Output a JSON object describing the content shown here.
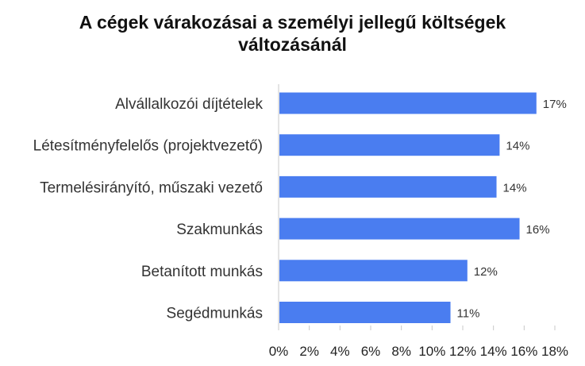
{
  "chart_data": {
    "type": "bar",
    "orientation": "horizontal",
    "title_lines": [
      "A cégek várakozásai a személyi jellegű költségek",
      "változásánál"
    ],
    "categories": [
      "Alvállalkozói díjtételek",
      "Létesítményfelelős (projektvezető)",
      "Termelésirányító, műszaki vezető",
      "Szakmunkás",
      "Betanított munkás",
      "Segédmunkás"
    ],
    "values": [
      16.8,
      14.4,
      14.2,
      15.7,
      12.3,
      11.2
    ],
    "data_labels": [
      "17%",
      "14%",
      "14%",
      "16%",
      "12%",
      "11%"
    ],
    "xlim": [
      0,
      18
    ],
    "x_ticks": [
      0,
      2,
      4,
      6,
      8,
      10,
      12,
      14,
      16,
      18
    ],
    "x_tick_labels": [
      "0%",
      "2%",
      "4%",
      "6%",
      "8%",
      "10%",
      "12%",
      "14%",
      "16%",
      "18%"
    ],
    "bar_color": "#4a7df0",
    "grid": false
  }
}
